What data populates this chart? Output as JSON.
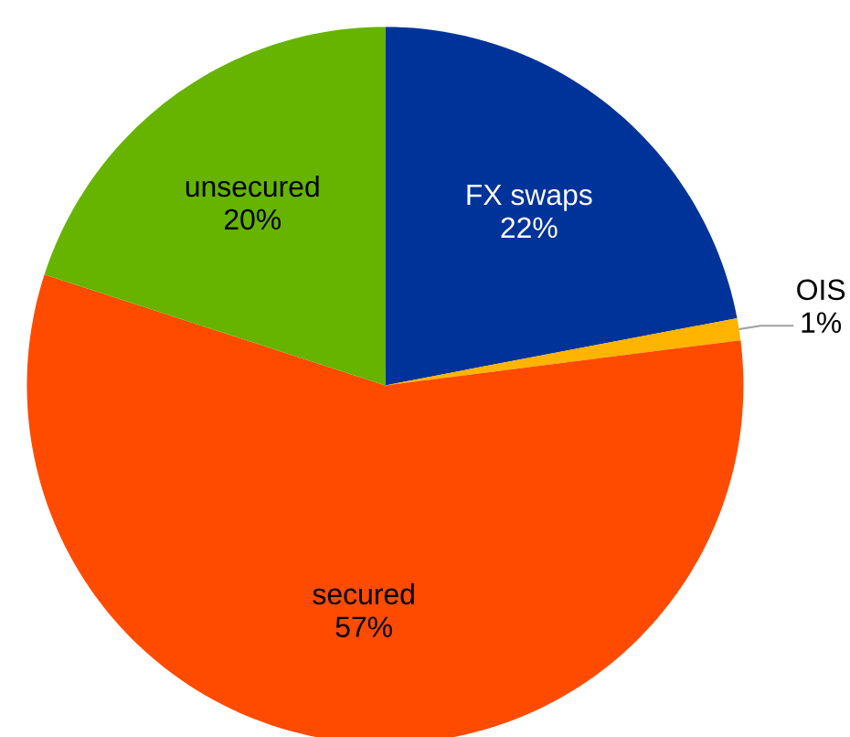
{
  "chart_data": {
    "type": "pie",
    "categories": [
      "FX swaps",
      "OIS",
      "secured",
      "unsecured"
    ],
    "values": [
      22,
      1,
      57,
      20
    ],
    "colors": [
      "#003399",
      "#ffb400",
      "#ff4b00",
      "#66b400"
    ],
    "value_labels": [
      "22%",
      "1%",
      "57%",
      "20%"
    ]
  }
}
